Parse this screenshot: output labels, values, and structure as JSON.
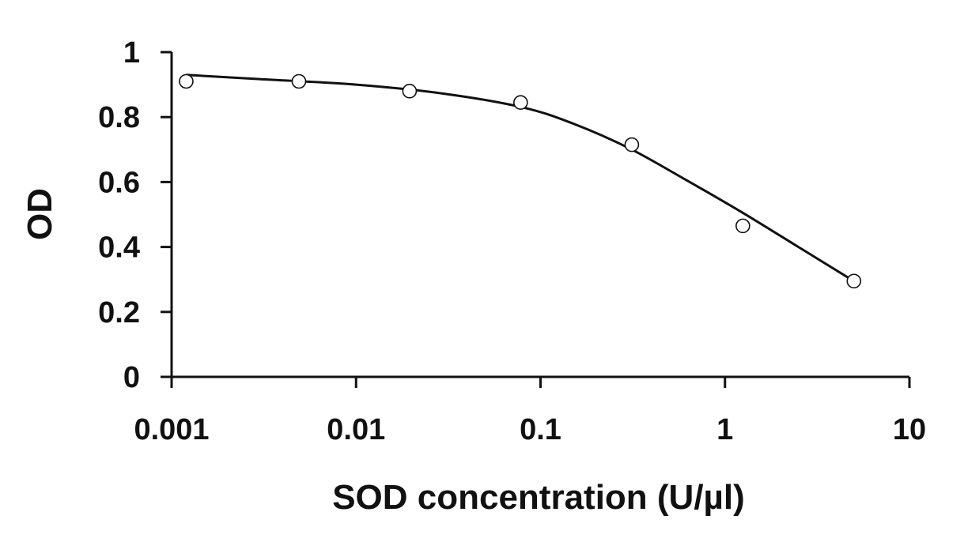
{
  "chart_data": {
    "type": "scatter",
    "title": "",
    "xlabel": "SOD concentration (U/µl)",
    "ylabel": "OD",
    "x_scale": "log",
    "xlim": [
      0.001,
      10
    ],
    "ylim": [
      0,
      1
    ],
    "x_ticks": [
      0.001,
      0.01,
      0.1,
      1,
      10
    ],
    "x_tick_labels": [
      "0.001",
      "0.01",
      "0.1",
      "1",
      "10"
    ],
    "y_ticks": [
      0,
      0.2,
      0.4,
      0.6,
      0.8,
      1
    ],
    "y_tick_labels": [
      "0",
      "0.2",
      "0.4",
      "0.6",
      "0.8",
      "1"
    ],
    "grid": false,
    "legend": false,
    "series": [
      {
        "kind": "points",
        "marker": "open-circle",
        "color": "#111111",
        "x": [
          0.0012,
          0.0049,
          0.0195,
          0.078,
          0.3125,
          1.25,
          5
        ],
        "y": [
          0.91,
          0.91,
          0.88,
          0.845,
          0.715,
          0.465,
          0.295
        ]
      },
      {
        "kind": "fit-line",
        "color": "#111111",
        "x": [
          0.0012,
          0.003,
          0.01,
          0.03,
          0.08,
          0.15,
          0.3,
          0.6,
          1.25,
          2.5,
          5
        ],
        "y": [
          0.93,
          0.917,
          0.9,
          0.872,
          0.83,
          0.78,
          0.705,
          0.61,
          0.505,
          0.4,
          0.295
        ]
      }
    ]
  }
}
